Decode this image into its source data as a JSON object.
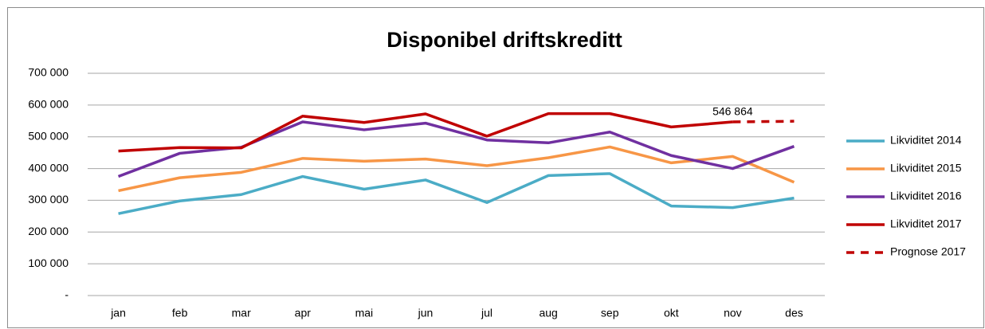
{
  "chart_data": {
    "type": "line",
    "title": "Disponibel driftskreditt",
    "categories": [
      "jan",
      "feb",
      "mar",
      "apr",
      "mai",
      "jun",
      "jul",
      "aug",
      "sep",
      "okt",
      "nov",
      "des"
    ],
    "series": [
      {
        "name": "Likviditet 2014",
        "color": "#4bacc6",
        "values": [
          258000,
          298000,
          318000,
          375000,
          335000,
          364000,
          293000,
          378000,
          384000,
          282000,
          277000,
          307000
        ]
      },
      {
        "name": "Likviditet 2015",
        "color": "#f79646",
        "values": [
          330000,
          371000,
          388000,
          432000,
          423000,
          430000,
          409000,
          434000,
          468000,
          418000,
          438000,
          357000
        ]
      },
      {
        "name": "Likviditet 2016",
        "color": "#7030a0",
        "values": [
          375000,
          448000,
          467000,
          547000,
          522000,
          543000,
          490000,
          481000,
          515000,
          441000,
          400000,
          470000
        ]
      },
      {
        "name": "Likviditet 2017",
        "color": "#c00000",
        "values": [
          455000,
          466000,
          465000,
          565000,
          545000,
          572000,
          502000,
          573000,
          573000,
          531000,
          546864,
          null
        ],
        "value_labels": [
          null,
          null,
          null,
          null,
          null,
          null,
          null,
          null,
          null,
          null,
          "546 864",
          null
        ]
      },
      {
        "name": "Prognose 2017",
        "color": "#c00000",
        "dashed": true,
        "values": [
          null,
          null,
          null,
          null,
          null,
          null,
          null,
          null,
          null,
          null,
          546864,
          549000
        ]
      }
    ],
    "ylim": [
      0,
      700000
    ],
    "yticks": [
      {
        "value": 0,
        "label": "-"
      },
      {
        "value": 100000,
        "label": "100 000"
      },
      {
        "value": 200000,
        "label": "200 000"
      },
      {
        "value": 300000,
        "label": "300 000"
      },
      {
        "value": 400000,
        "label": "400 000"
      },
      {
        "value": 500000,
        "label": "500 000"
      },
      {
        "value": 600000,
        "label": "600 000"
      },
      {
        "value": 700000,
        "label": "700 000"
      }
    ],
    "grid": true,
    "legend": "right"
  }
}
